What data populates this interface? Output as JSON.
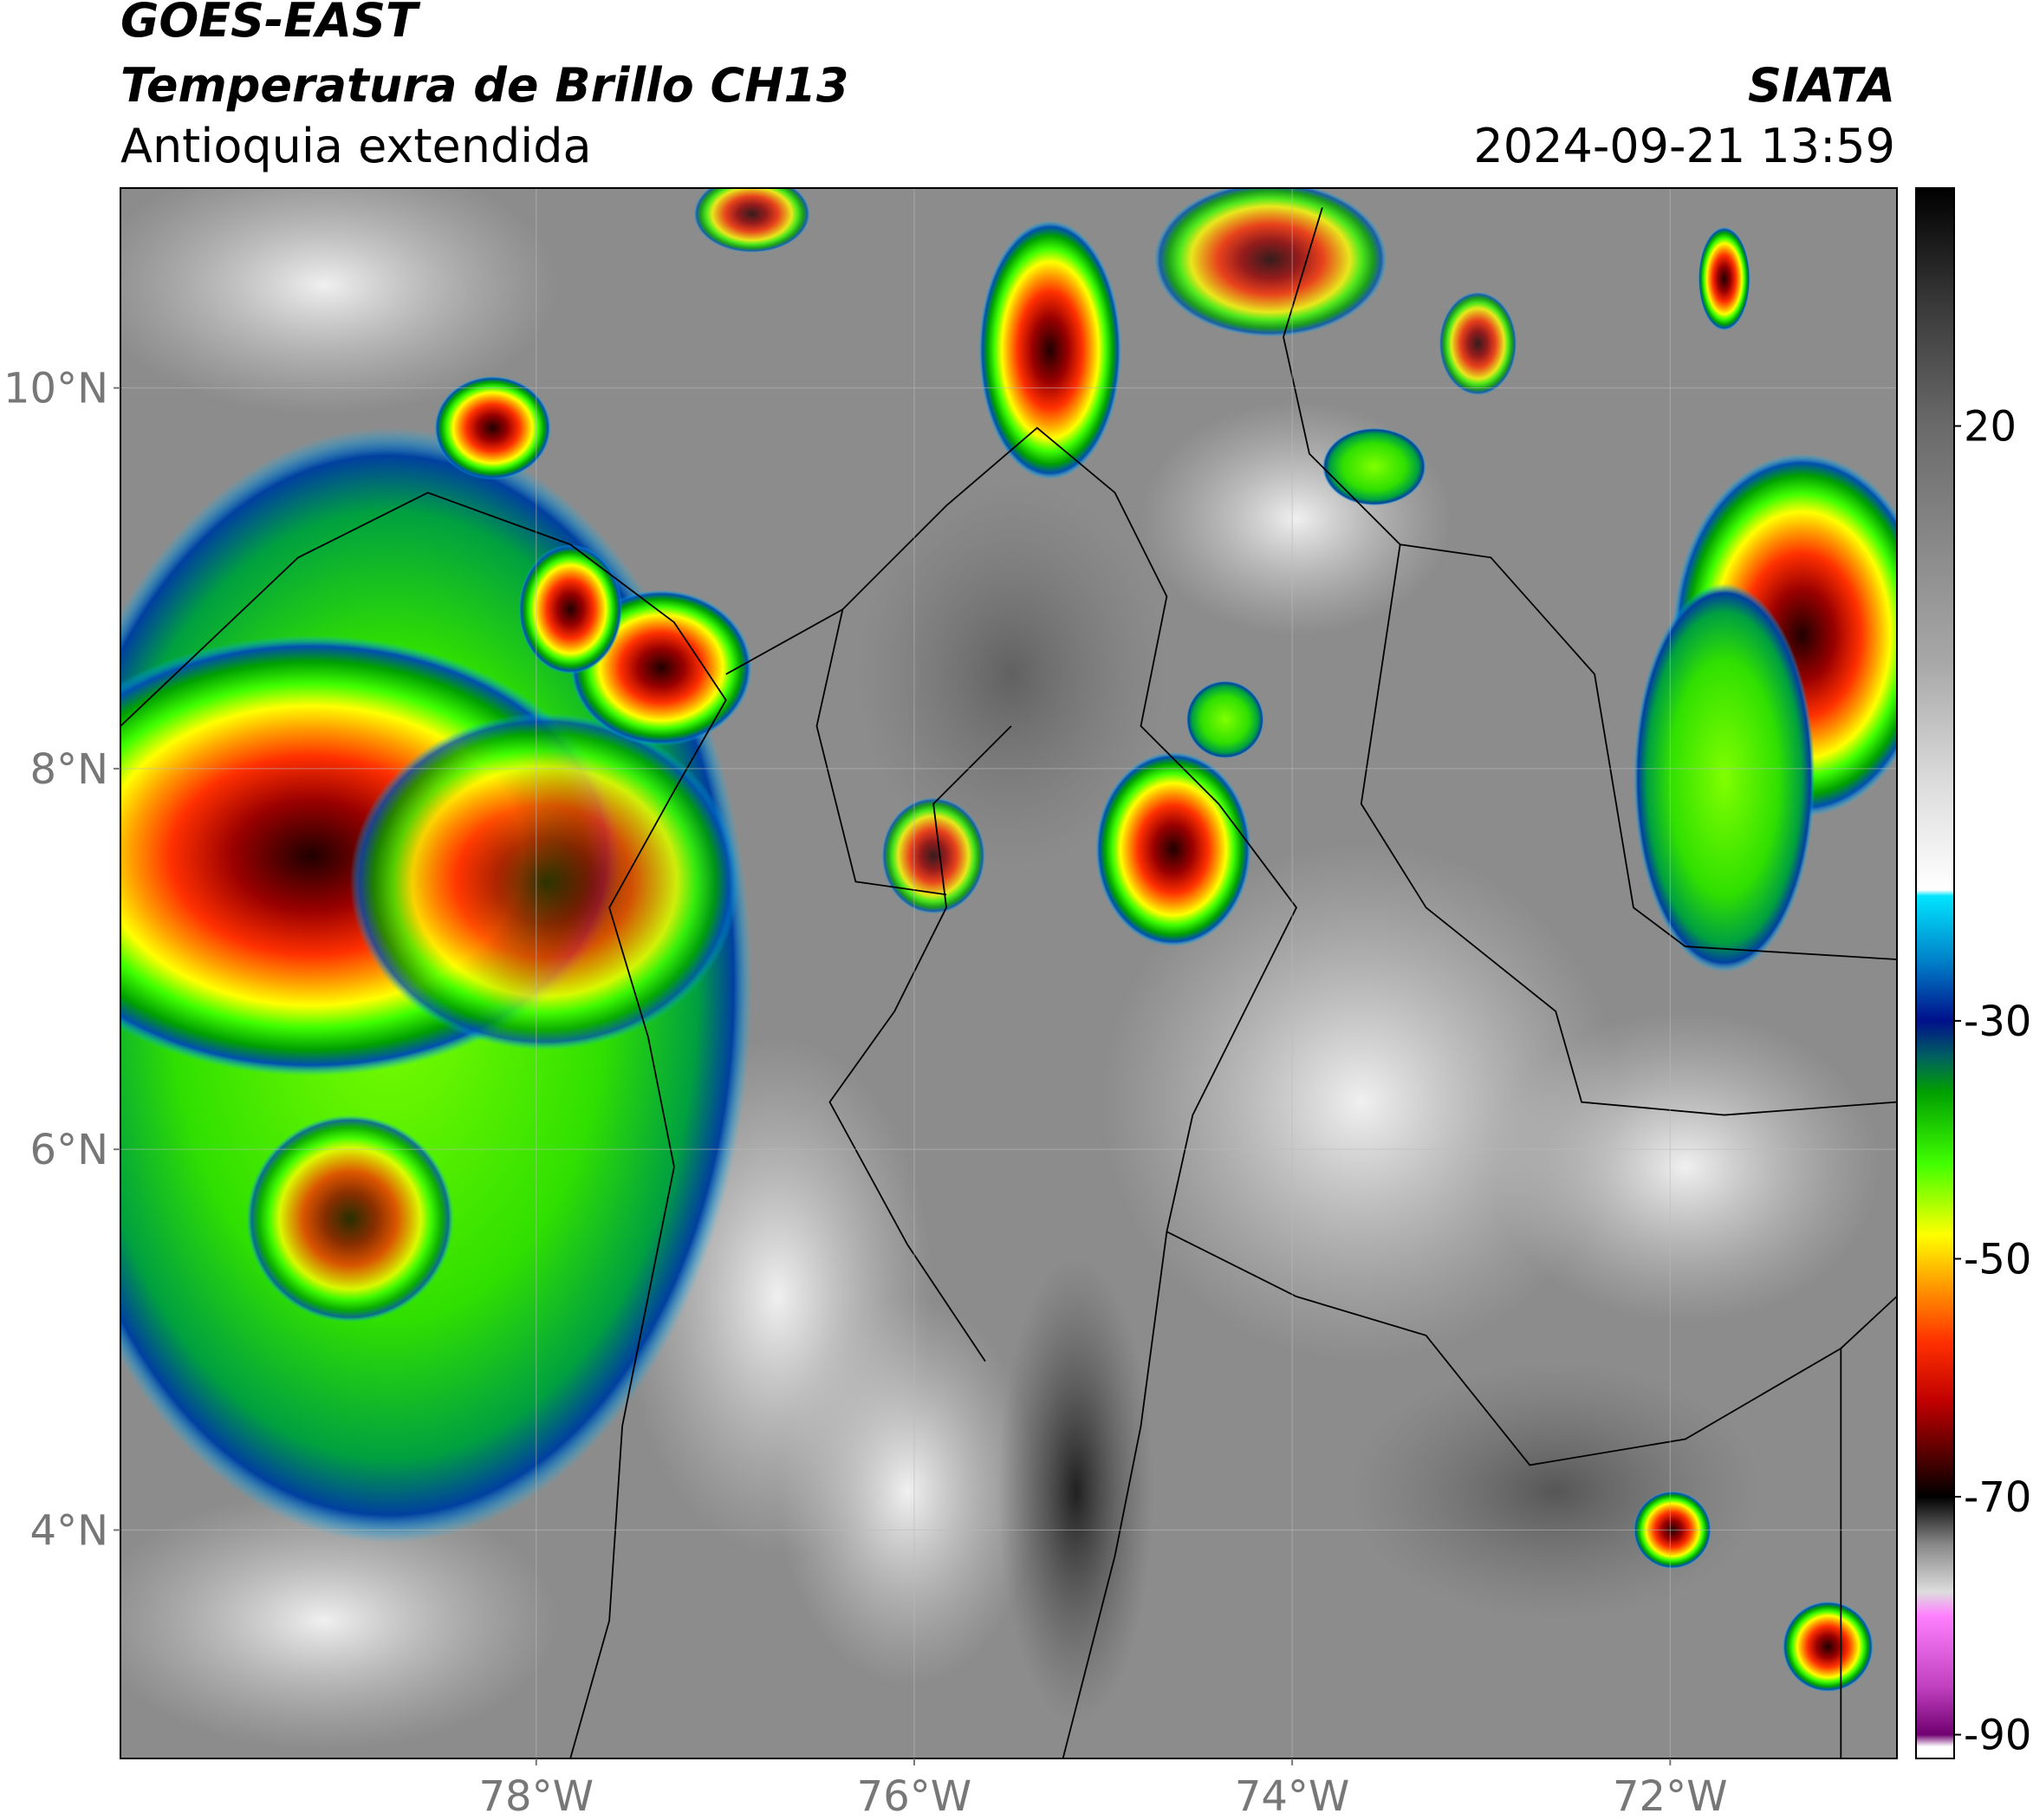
{
  "header": {
    "satellite": "GOES-EAST",
    "product": "Temperatura de Brillo CH13",
    "region": "Antioquia extendida",
    "agency": "SIATA",
    "datetime": "2024-09-21 13:59"
  },
  "map": {
    "xlim": [
      -80.2,
      -70.8
    ],
    "ylim": [
      2.8,
      11.05
    ],
    "xticks": [
      {
        "value": -78,
        "label": "78°W"
      },
      {
        "value": -76,
        "label": "76°W"
      },
      {
        "value": -74,
        "label": "74°W"
      },
      {
        "value": -72,
        "label": "72°W"
      }
    ],
    "yticks": [
      {
        "value": 4,
        "label": "4°N"
      },
      {
        "value": 6,
        "label": "6°N"
      },
      {
        "value": 8,
        "label": "8°N"
      },
      {
        "value": 10,
        "label": "10°N"
      }
    ],
    "grid": true
  },
  "colorbar": {
    "lim": [
      -92,
      40
    ],
    "ticks": [
      20,
      -30,
      -50,
      -70,
      -90
    ],
    "stops": [
      {
        "value": 40,
        "color": "#000000"
      },
      {
        "value": 30,
        "color": "#3a3a3a"
      },
      {
        "value": 20,
        "color": "#6a6a6a"
      },
      {
        "value": 0,
        "color": "#a8a8a8"
      },
      {
        "value": -10,
        "color": "#dcdcdc"
      },
      {
        "value": -19,
        "color": "#ffffff"
      },
      {
        "value": -19.5,
        "color": "#00e5ff"
      },
      {
        "value": -25,
        "color": "#0080c8"
      },
      {
        "value": -30,
        "color": "#00108b"
      },
      {
        "value": -33,
        "color": "#006060"
      },
      {
        "value": -36,
        "color": "#00a000"
      },
      {
        "value": -42,
        "color": "#40ff00"
      },
      {
        "value": -48,
        "color": "#ffff00"
      },
      {
        "value": -52,
        "color": "#ffa000"
      },
      {
        "value": -57,
        "color": "#ff3000"
      },
      {
        "value": -62,
        "color": "#c00000"
      },
      {
        "value": -66,
        "color": "#600000"
      },
      {
        "value": -70,
        "color": "#000000"
      },
      {
        "value": -74,
        "color": "#888888"
      },
      {
        "value": -78,
        "color": "#dddddd"
      },
      {
        "value": -80,
        "color": "#ff80ff"
      },
      {
        "value": -86,
        "color": "#c040c0"
      },
      {
        "value": -90,
        "color": "#700070"
      },
      {
        "value": -91,
        "color": "#ffffff"
      },
      {
        "value": -92,
        "color": "#ffffff"
      }
    ]
  }
}
